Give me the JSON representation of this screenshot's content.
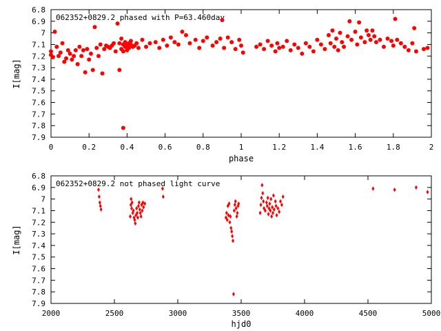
{
  "chart_data": [
    {
      "type": "scatter",
      "title": "062352+0829.2 phased with P=63.460day",
      "xlabel": "phase",
      "ylabel": "I[mag]",
      "xlim": [
        0,
        2
      ],
      "ylim": [
        6.8,
        7.9
      ],
      "y_inverted": true,
      "grid": false,
      "marker_color": "#ff0000",
      "marker": "filled-circle",
      "x_ticks": [
        "0",
        "0.2",
        "0.4",
        "0.6",
        "0.8",
        "1",
        "1.2",
        "1.4",
        "1.6",
        "1.8",
        "2"
      ],
      "y_ticks": [
        "6.8",
        "6.9",
        "7",
        "7.1",
        "7.2",
        "7.3",
        "7.4",
        "7.5",
        "7.6",
        "7.7",
        "7.8",
        "7.9"
      ],
      "points": [
        [
          0.0,
          7.16
        ],
        [
          0.0,
          7.19
        ],
        [
          0.01,
          7.21
        ],
        [
          0.02,
          6.99
        ],
        [
          0.03,
          7.12
        ],
        [
          0.04,
          7.2
        ],
        [
          0.05,
          7.17
        ],
        [
          0.06,
          7.09
        ],
        [
          0.07,
          7.25
        ],
        [
          0.08,
          7.22
        ],
        [
          0.09,
          7.15
        ],
        [
          0.1,
          7.18
        ],
        [
          0.11,
          7.23
        ],
        [
          0.12,
          7.2
        ],
        [
          0.13,
          7.15
        ],
        [
          0.14,
          7.27
        ],
        [
          0.15,
          7.12
        ],
        [
          0.16,
          7.2
        ],
        [
          0.17,
          7.15
        ],
        [
          0.18,
          7.34
        ],
        [
          0.19,
          7.14
        ],
        [
          0.2,
          7.23
        ],
        [
          0.21,
          7.18
        ],
        [
          0.22,
          7.32
        ],
        [
          0.23,
          6.95
        ],
        [
          0.24,
          7.13
        ],
        [
          0.25,
          7.2
        ],
        [
          0.26,
          7.1
        ],
        [
          0.27,
          7.35
        ],
        [
          0.28,
          7.14
        ],
        [
          0.29,
          7.11
        ],
        [
          0.3,
          7.12
        ],
        [
          0.31,
          7.13
        ],
        [
          0.32,
          7.11
        ],
        [
          0.33,
          7.09
        ],
        [
          0.34,
          7.16
        ],
        [
          0.35,
          6.92
        ],
        [
          0.36,
          7.32
        ],
        [
          0.36,
          7.09
        ],
        [
          0.37,
          7.05
        ],
        [
          0.37,
          7.14
        ],
        [
          0.38,
          7.1
        ],
        [
          0.38,
          7.16
        ],
        [
          0.38,
          7.82
        ],
        [
          0.39,
          7.08
        ],
        [
          0.39,
          7.12
        ],
        [
          0.4,
          7.11
        ],
        [
          0.4,
          7.15
        ],
        [
          0.41,
          7.09
        ],
        [
          0.41,
          7.13
        ],
        [
          0.42,
          7.1
        ],
        [
          0.42,
          7.07
        ],
        [
          0.43,
          7.12
        ],
        [
          0.44,
          7.11
        ],
        [
          0.45,
          7.09
        ],
        [
          0.46,
          7.13
        ],
        [
          0.48,
          7.06
        ],
        [
          0.5,
          7.12
        ],
        [
          0.52,
          7.09
        ],
        [
          0.55,
          7.08
        ],
        [
          0.57,
          7.13
        ],
        [
          0.59,
          7.06
        ],
        [
          0.61,
          7.11
        ],
        [
          0.63,
          7.04
        ],
        [
          0.65,
          7.08
        ],
        [
          0.67,
          7.1
        ],
        [
          0.69,
          6.99
        ],
        [
          0.71,
          7.02
        ],
        [
          0.73,
          7.09
        ],
        [
          0.76,
          7.06
        ],
        [
          0.78,
          7.13
        ],
        [
          0.8,
          7.07
        ],
        [
          0.82,
          7.04
        ],
        [
          0.85,
          7.11
        ],
        [
          0.87,
          7.08
        ],
        [
          0.89,
          7.05
        ],
        [
          0.9,
          6.89
        ],
        [
          0.91,
          7.13
        ],
        [
          0.93,
          7.04
        ],
        [
          0.95,
          7.08
        ],
        [
          0.97,
          7.14
        ],
        [
          0.99,
          7.06
        ],
        [
          1.0,
          7.11
        ],
        [
          1.01,
          7.17
        ],
        [
          1.08,
          7.12
        ],
        [
          1.1,
          7.1
        ],
        [
          1.12,
          7.14
        ],
        [
          1.14,
          7.07
        ],
        [
          1.16,
          7.11
        ],
        [
          1.18,
          7.16
        ],
        [
          1.19,
          7.09
        ],
        [
          1.2,
          7.13
        ],
        [
          1.22,
          7.12
        ],
        [
          1.24,
          7.07
        ],
        [
          1.26,
          7.15
        ],
        [
          1.28,
          7.1
        ],
        [
          1.3,
          7.13
        ],
        [
          1.32,
          7.18
        ],
        [
          1.34,
          7.09
        ],
        [
          1.36,
          7.12
        ],
        [
          1.38,
          7.16
        ],
        [
          1.4,
          7.06
        ],
        [
          1.42,
          7.1
        ],
        [
          1.44,
          7.14
        ],
        [
          1.46,
          7.02
        ],
        [
          1.47,
          7.09
        ],
        [
          1.48,
          6.98
        ],
        [
          1.49,
          7.12
        ],
        [
          1.5,
          7.05
        ],
        [
          1.51,
          7.15
        ],
        [
          1.52,
          7.0
        ],
        [
          1.53,
          7.08
        ],
        [
          1.54,
          7.12
        ],
        [
          1.56,
          7.03
        ],
        [
          1.57,
          6.9
        ],
        [
          1.58,
          7.06
        ],
        [
          1.6,
          6.99
        ],
        [
          1.61,
          7.1
        ],
        [
          1.62,
          6.91
        ],
        [
          1.63,
          7.04
        ],
        [
          1.65,
          7.08
        ],
        [
          1.66,
          6.98
        ],
        [
          1.67,
          7.02
        ],
        [
          1.68,
          7.06
        ],
        [
          1.69,
          6.98
        ],
        [
          1.7,
          7.03
        ],
        [
          1.71,
          7.08
        ],
        [
          1.73,
          7.06
        ],
        [
          1.75,
          7.12
        ],
        [
          1.77,
          7.05
        ],
        [
          1.79,
          7.07
        ],
        [
          1.8,
          7.11
        ],
        [
          1.81,
          6.88
        ],
        [
          1.82,
          7.06
        ],
        [
          1.84,
          7.09
        ],
        [
          1.86,
          7.12
        ],
        [
          1.88,
          7.15
        ],
        [
          1.9,
          7.09
        ],
        [
          1.91,
          6.96
        ],
        [
          1.92,
          7.16
        ],
        [
          1.96,
          7.14
        ],
        [
          1.98,
          7.13
        ]
      ]
    },
    {
      "type": "scatter",
      "title": "062352+0829.2 not phased light curve",
      "xlabel": "hjd0",
      "ylabel": "I[mag]",
      "xlim": [
        2000,
        5000
      ],
      "ylim": [
        6.8,
        7.9
      ],
      "y_inverted": true,
      "grid": false,
      "marker_color": "#ff0000",
      "marker": "diamond",
      "x_ticks": [
        "2000",
        "2500",
        "3000",
        "3500",
        "4000",
        "4500",
        "5000"
      ],
      "y_ticks": [
        "6.8",
        "6.9",
        "7",
        "7.1",
        "7.2",
        "7.3",
        "7.4",
        "7.5",
        "7.6",
        "7.7",
        "7.8",
        "7.9"
      ],
      "points": [
        [
          2375,
          6.92
        ],
        [
          2380,
          6.98
        ],
        [
          2385,
          7.03
        ],
        [
          2390,
          7.06
        ],
        [
          2395,
          7.09
        ],
        [
          2625,
          7.15
        ],
        [
          2630,
          7.05
        ],
        [
          2632,
          7.0
        ],
        [
          2636,
          7.08
        ],
        [
          2640,
          7.03
        ],
        [
          2645,
          7.12
        ],
        [
          2650,
          7.1
        ],
        [
          2655,
          7.16
        ],
        [
          2660,
          7.18
        ],
        [
          2665,
          7.21
        ],
        [
          2670,
          7.14
        ],
        [
          2675,
          7.08
        ],
        [
          2680,
          7.12
        ],
        [
          2685,
          7.16
        ],
        [
          2690,
          7.06
        ],
        [
          2695,
          7.03
        ],
        [
          2700,
          7.09
        ],
        [
          2705,
          7.12
        ],
        [
          2710,
          7.15
        ],
        [
          2715,
          7.05
        ],
        [
          2720,
          7.1
        ],
        [
          2725,
          7.03
        ],
        [
          2730,
          7.07
        ],
        [
          2740,
          7.04
        ],
        [
          2880,
          6.91
        ],
        [
          2885,
          6.98
        ],
        [
          3380,
          7.16
        ],
        [
          3385,
          7.12
        ],
        [
          3390,
          7.18
        ],
        [
          3395,
          7.06
        ],
        [
          3400,
          7.14
        ],
        [
          3405,
          7.04
        ],
        [
          3410,
          7.2
        ],
        [
          3415,
          7.15
        ],
        [
          3420,
          7.25
        ],
        [
          3425,
          7.28
        ],
        [
          3430,
          7.32
        ],
        [
          3435,
          7.36
        ],
        [
          3440,
          7.82
        ],
        [
          3445,
          7.1
        ],
        [
          3450,
          7.05
        ],
        [
          3455,
          7.02
        ],
        [
          3460,
          7.08
        ],
        [
          3465,
          7.15
        ],
        [
          3470,
          7.12
        ],
        [
          3475,
          7.06
        ],
        [
          3480,
          7.04
        ],
        [
          3650,
          7.12
        ],
        [
          3655,
          7.05
        ],
        [
          3660,
          6.99
        ],
        [
          3665,
          6.88
        ],
        [
          3670,
          6.95
        ],
        [
          3675,
          7.02
        ],
        [
          3680,
          7.08
        ],
        [
          3690,
          7.1
        ],
        [
          3700,
          7.03
        ],
        [
          3705,
          7.06
        ],
        [
          3710,
          6.99
        ],
        [
          3715,
          7.13
        ],
        [
          3720,
          7.08
        ],
        [
          3725,
          7.04
        ],
        [
          3730,
          7.1
        ],
        [
          3735,
          7.0
        ],
        [
          3740,
          7.15
        ],
        [
          3745,
          7.07
        ],
        [
          3750,
          7.12
        ],
        [
          3755,
          6.97
        ],
        [
          3760,
          7.09
        ],
        [
          3770,
          7.02
        ],
        [
          3775,
          7.06
        ],
        [
          3780,
          7.14
        ],
        [
          3790,
          7.08
        ],
        [
          3800,
          7.11
        ],
        [
          3810,
          7.02
        ],
        [
          3820,
          7.05
        ],
        [
          3830,
          6.98
        ],
        [
          4540,
          6.91
        ],
        [
          4710,
          6.92
        ],
        [
          4880,
          6.9
        ],
        [
          4970,
          6.94
        ]
      ]
    }
  ]
}
